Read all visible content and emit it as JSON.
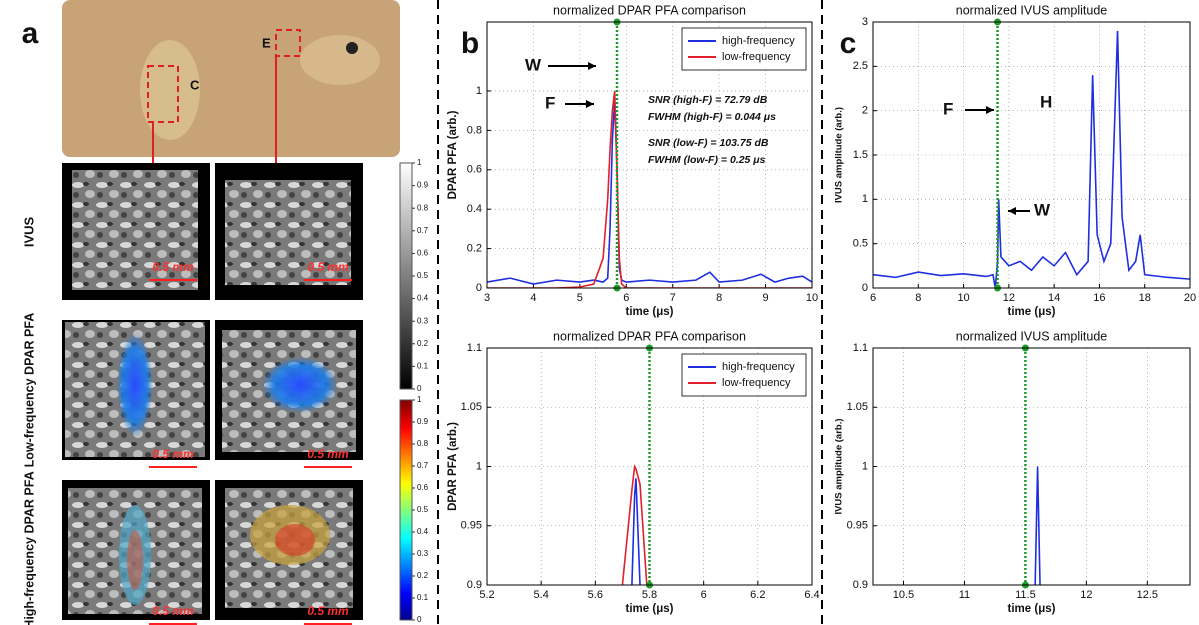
{
  "panel_labels": [
    "a",
    "b",
    "c"
  ],
  "panel_a": {
    "photo_labels": [
      "C",
      "E"
    ],
    "row_labels": [
      "IVUS",
      "Low-frequency DPAR PFA",
      "High-frequency DPAR PFA"
    ],
    "scale_bar": "0.5 mm",
    "colorbars": [
      {
        "ticks": [
          0,
          0.1,
          0.2,
          0.3,
          0.4,
          0.5,
          0.6,
          0.7,
          0.8,
          0.9,
          1
        ]
      },
      {
        "ticks": [
          0,
          0.1,
          0.2,
          0.3,
          0.4,
          0.5,
          0.6,
          0.7,
          0.8,
          0.9,
          1
        ]
      }
    ]
  },
  "chart_data": [
    {
      "type": "line",
      "title": "normalized DPAR PFA comparison",
      "xlabel": "time (μs)",
      "ylabel": "DPAR PFA (arb.)",
      "x": [
        3,
        3.5,
        4,
        4.5,
        5,
        5.3,
        5.5,
        5.6,
        5.65,
        5.7,
        5.75,
        5.8,
        5.85,
        5.9,
        6,
        6.5,
        7,
        7.5,
        7.8,
        8,
        8.5,
        8.9,
        9.2,
        9.5,
        9.8,
        10
      ],
      "series": [
        {
          "name": "high-frequency",
          "color": "#1f2fe0",
          "values": [
            0.03,
            0.05,
            0.02,
            0.04,
            0.03,
            0.04,
            0.03,
            0.05,
            0.3,
            0.75,
            0.95,
            0.6,
            0.1,
            0.04,
            0.03,
            0.04,
            0.03,
            0.04,
            0.08,
            0.03,
            0.04,
            0.07,
            0.03,
            0.05,
            0.06,
            0.03
          ]
        },
        {
          "name": "low-frequency",
          "color": "#e0202a",
          "values": [
            0,
            0,
            0,
            0,
            0.005,
            0.02,
            0.15,
            0.45,
            0.7,
            0.9,
            1,
            0.6,
            0.15,
            0.02,
            0,
            0,
            0,
            0,
            0,
            0,
            0,
            0,
            0,
            0,
            0,
            0
          ]
        }
      ],
      "xlim": [
        3,
        10
      ],
      "xticks": [
        3,
        4,
        5,
        6,
        7,
        8,
        9,
        10
      ],
      "ylim": [
        0,
        1.35
      ],
      "yticks": [
        0,
        0.2,
        0.4,
        0.6,
        0.8,
        1
      ],
      "grid": true,
      "legend": "upper right",
      "vline": {
        "x": 5.8,
        "color": "#1e9a2a"
      },
      "annotations": [
        "W",
        "F",
        "SNR (high-F) = 72.79 dB",
        "FWHM (high-F) = 0.044 μs",
        "SNR (low-F) = 103.75 dB",
        "FWHM (low-F) = 0.25 μs"
      ]
    },
    {
      "type": "line",
      "title": "normalized DPAR PFA comparison",
      "xlabel": "time (μs)",
      "ylabel": "DPAR PFA (arb.)",
      "x": [
        5.7,
        5.735,
        5.745,
        5.75,
        5.765,
        5.79
      ],
      "series": [
        {
          "name": "high-frequency",
          "color": "#1f2fe0",
          "values": [
            null,
            0.9,
            0.975,
            0.99,
            0.9,
            null
          ]
        },
        {
          "name": "low-frequency",
          "color": "#e0202a",
          "values": [
            0.9,
            0.98,
            1,
            0.998,
            0.985,
            0.9
          ]
        }
      ],
      "xlim": [
        5.2,
        6.4
      ],
      "xticks": [
        5.2,
        5.4,
        5.6,
        5.8,
        6,
        6.2,
        6.4
      ],
      "ylim": [
        0.9,
        1.1
      ],
      "yticks": [
        0.9,
        0.95,
        1,
        1.05,
        1.1
      ],
      "grid": true,
      "legend": "upper right",
      "vline": {
        "x": 5.8,
        "color": "#1e9a2a"
      }
    },
    {
      "type": "line",
      "title": "normalized IVUS amplitude",
      "xlabel": "time (μs)",
      "ylabel": "IVUS amplitude (arb.)",
      "x": [
        6,
        7,
        8,
        9,
        10,
        11,
        11.3,
        11.4,
        11.5,
        11.55,
        11.65,
        12,
        12.5,
        13,
        13.5,
        14,
        14.5,
        15,
        15.5,
        15.7,
        15.9,
        16.2,
        16.5,
        16.8,
        17,
        17.3,
        17.6,
        17.8,
        18,
        19,
        20
      ],
      "series": [
        {
          "color": "#1f2fe0",
          "values": [
            0.15,
            0.12,
            0.18,
            0.14,
            0.16,
            0.13,
            0.15,
            0,
            0.3,
            1,
            0.35,
            0.25,
            0.3,
            0.2,
            0.35,
            0.25,
            0.4,
            0.15,
            0.3,
            2.4,
            0.6,
            0.3,
            0.5,
            2.9,
            0.8,
            0.2,
            0.3,
            0.6,
            0.15,
            0.12,
            0.1
          ]
        }
      ],
      "xlim": [
        6,
        20
      ],
      "xticks": [
        6,
        8,
        10,
        12,
        14,
        16,
        18,
        20
      ],
      "ylim": [
        0,
        3
      ],
      "yticks": [
        0,
        0.5,
        1,
        1.5,
        2,
        2.5,
        3
      ],
      "grid": true,
      "vline": {
        "x": 11.5,
        "color": "#1e9a2a"
      },
      "annotations": [
        "F",
        "H",
        "W"
      ]
    },
    {
      "type": "line",
      "title": "normalized IVUS amplitude",
      "xlabel": "time (μs)",
      "ylabel": "IVUS amplitude (arb.)",
      "x": [
        11.58,
        11.6,
        11.62
      ],
      "series": [
        {
          "color": "#1f2fe0",
          "values": [
            0.9,
            1,
            0.9
          ]
        }
      ],
      "xlim": [
        10.25,
        12.85
      ],
      "xticks": [
        10.5,
        11,
        11.5,
        12,
        12.5
      ],
      "ylim": [
        0.9,
        1.1
      ],
      "yticks": [
        0.9,
        0.95,
        1,
        1.05,
        1.1
      ],
      "grid": true,
      "vline": {
        "x": 11.5,
        "color": "#1e9a2a"
      }
    }
  ]
}
